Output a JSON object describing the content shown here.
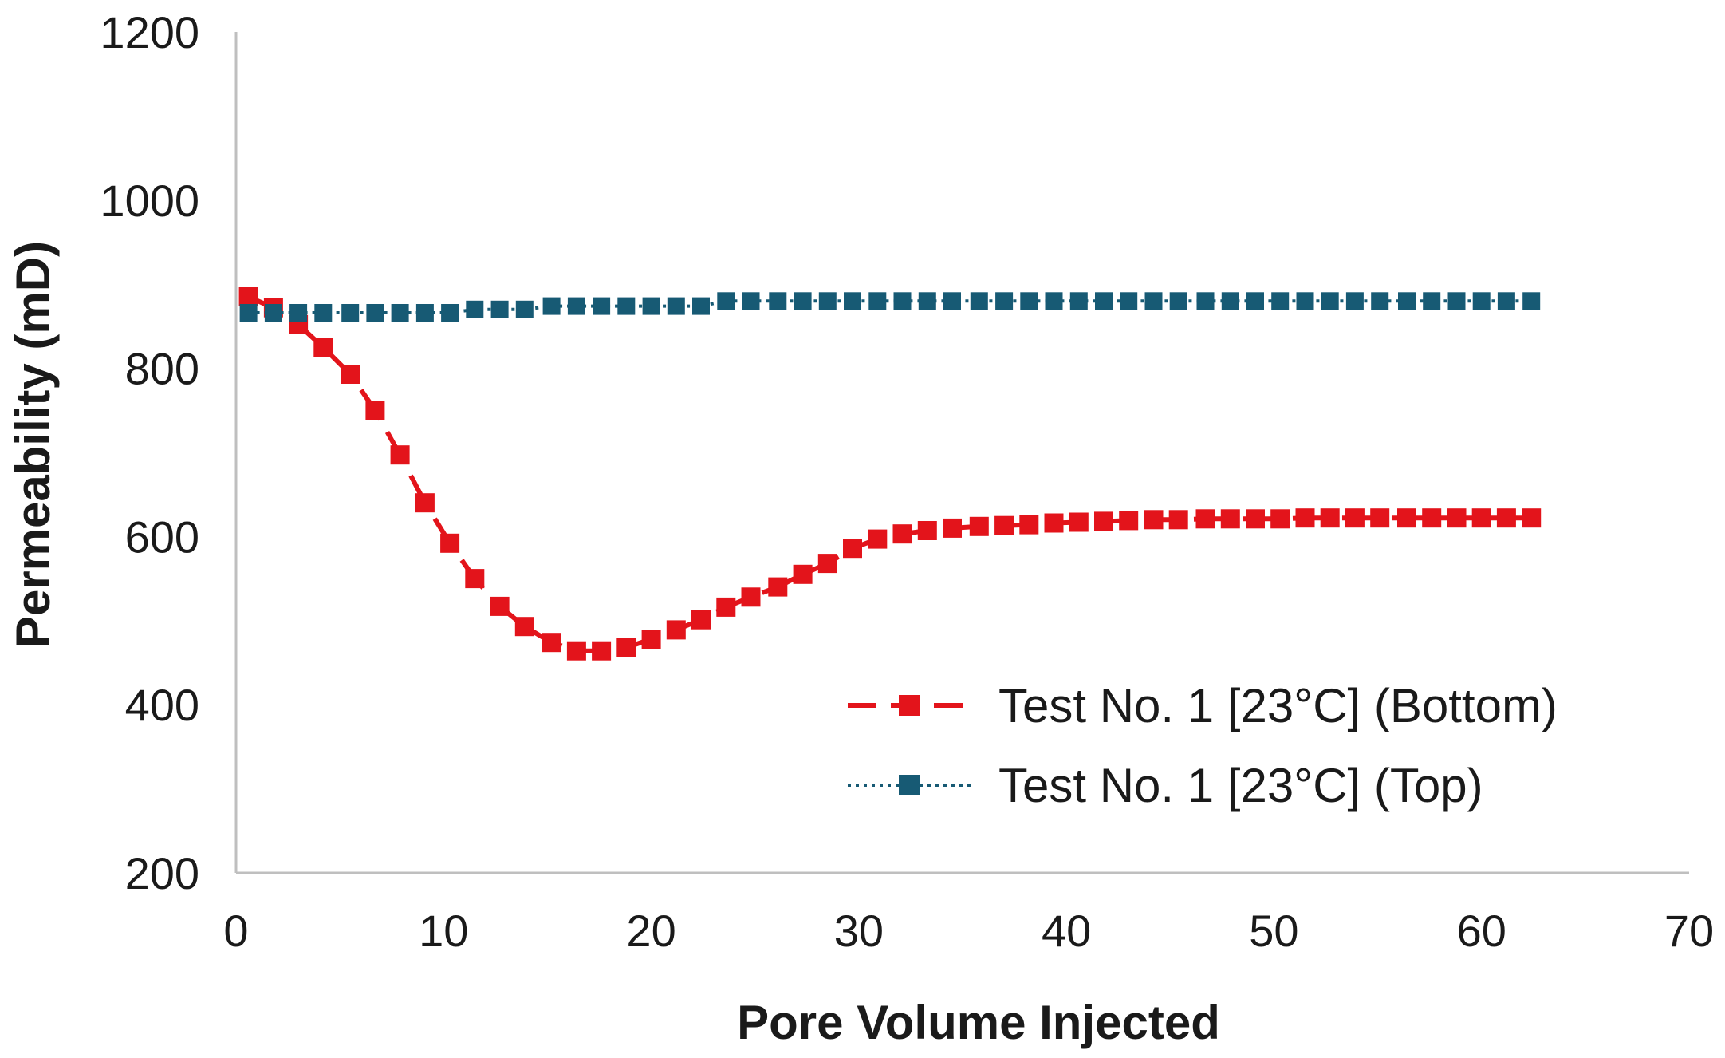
{
  "chart_data": {
    "type": "line",
    "title": "",
    "xlabel": "Pore Volume Injected",
    "ylabel": "Permeability (mD)",
    "xlim": [
      0,
      70
    ],
    "ylim": [
      200,
      1200
    ],
    "xticks": [
      0,
      10,
      20,
      30,
      40,
      50,
      60,
      70
    ],
    "yticks": [
      200,
      400,
      600,
      800,
      1000,
      1200
    ],
    "xtick_labels": [
      "0",
      "10",
      "20",
      "30",
      "40",
      "50",
      "60",
      "70"
    ],
    "ytick_labels": [
      "200",
      "400",
      "600",
      "800",
      "1000",
      "1200"
    ],
    "grid": false,
    "legend_position": "lower-right",
    "x": [
      0.6,
      1.8,
      3.0,
      4.2,
      5.5,
      6.7,
      7.9,
      9.1,
      10.3,
      11.5,
      12.7,
      13.9,
      15.2,
      16.4,
      17.6,
      18.8,
      20.0,
      21.2,
      22.4,
      23.6,
      24.8,
      26.1,
      27.3,
      28.5,
      29.7,
      30.9,
      32.1,
      33.3,
      34.5,
      35.8,
      37.0,
      38.2,
      39.4,
      40.6,
      41.8,
      43.0,
      44.2,
      45.4,
      46.7,
      47.9,
      49.1,
      50.3,
      51.5,
      52.7,
      53.9,
      55.1,
      56.4,
      57.6,
      58.8,
      60.0,
      61.2,
      62.4
    ],
    "series": [
      {
        "name": "Test No. 1 [23°C] (Bottom)",
        "color": "#e3141b",
        "line_style": "dashed",
        "marker": "square",
        "values": [
          885,
          872,
          852,
          825,
          793,
          750,
          697,
          640,
          592,
          550,
          517,
          493,
          474,
          464,
          464,
          468,
          478,
          489,
          501,
          516,
          528,
          540,
          555,
          568,
          586,
          597,
          603,
          607,
          610,
          612,
          613,
          614,
          616,
          617,
          618,
          619,
          620,
          620,
          621,
          621,
          621,
          621,
          622,
          622,
          622,
          622,
          622,
          622,
          622,
          622,
          622,
          622
        ]
      },
      {
        "name": "Test No. 1 [23°C] (Top)",
        "color": "#175a74",
        "line_style": "dotted",
        "marker": "square",
        "values": [
          866,
          866,
          866,
          866,
          866,
          866,
          866,
          866,
          866,
          870,
          870,
          870,
          874,
          874,
          874,
          874,
          874,
          874,
          874,
          880,
          880,
          880,
          880,
          880,
          880,
          880,
          880,
          880,
          880,
          880,
          880,
          880,
          880,
          880,
          880,
          880,
          880,
          880,
          880,
          880,
          880,
          880,
          880,
          880,
          880,
          880,
          880,
          880,
          880,
          880,
          880,
          880
        ]
      }
    ]
  }
}
